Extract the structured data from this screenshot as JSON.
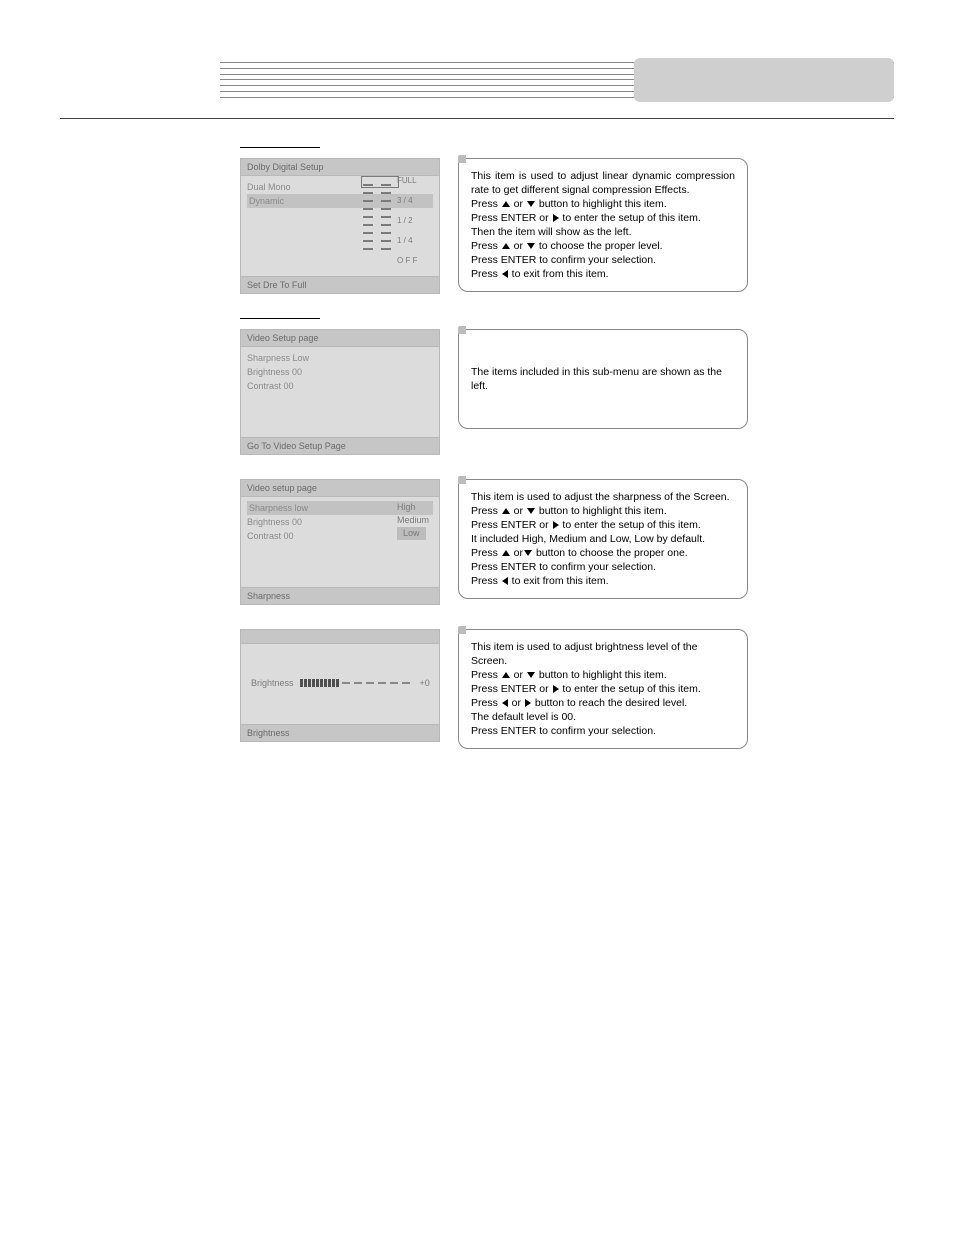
{
  "colors": {
    "page_bg": "#ffffff",
    "osd_bg": "#dcdcdc",
    "osd_header_bg": "#c6c6c6",
    "osd_text": "#8a8a8a",
    "osd_border": "#b8b8b8",
    "info_border": "#888888",
    "arrow": "#000000",
    "bar_fill": "#505050",
    "bar_dash": "#888888"
  },
  "header": {
    "type": "decorative-lines-with-pill"
  },
  "section_dolby_heading": " ",
  "dolby_osd": {
    "title": "Dolby Digital Setup",
    "items": [
      {
        "label": "Dual Mono"
      },
      {
        "label": "Dynamic",
        "selected": true
      }
    ],
    "ladder": {
      "levels": [
        "FULL",
        "3 / 4",
        "1 / 2",
        "1 / 4",
        "O F F"
      ],
      "selected": "FULL"
    },
    "footer": "Set Dre To Full"
  },
  "dolby_info": {
    "intro": "This item is used to adjust linear dynamic compression rate to get different signal compression Effects.",
    "l1a": "Press ",
    "l1b": " or ",
    "l1c": " button to highlight this item.",
    "l2a": "Press ENTER or ",
    "l2b": " to enter the setup of this item.",
    "l3": "Then the item will show as the left.",
    "l4a": "Press ",
    "l4b": " or ",
    "l4c": " to choose the proper level.",
    "l5": "Press ENTER to confirm your selection.",
    "l6a": "Press ",
    "l6b": " to exit from this item."
  },
  "section_video_heading": " ",
  "video_osd_main": {
    "title": "Video Setup page",
    "lines": [
      "Sharpness   Low",
      "Brightness  00",
      "Contrast    00"
    ],
    "footer": "Go To Video Setup Page"
  },
  "video_info_main": {
    "text": "The items included in this sub-menu are shown as the left."
  },
  "video_osd_sharp": {
    "title": "Video setup page",
    "lines": [
      {
        "text": "Sharpness   low",
        "selected": true
      },
      {
        "text": "Brightness  00"
      },
      {
        "text": "Contrast    00"
      }
    ],
    "options": [
      {
        "text": "High"
      },
      {
        "text": "Medium"
      },
      {
        "text": "Low",
        "selected": true
      }
    ],
    "footer": "Sharpness"
  },
  "sharp_info": {
    "intro": "This item is used to adjust the sharpness of the Screen.",
    "l1a": "Press ",
    "l1b": " or ",
    "l1c": " button to highlight this item.",
    "l2a": "Press ENTER or ",
    "l2b": " to enter the setup of this item.",
    "l3": "It included High, Medium and Low, Low by default.",
    "l4a": "Press ",
    "l4b": " or",
    "l4c": " button to choose the proper one.",
    "l5": "Press ENTER to confirm your selection.",
    "l6a": "Press ",
    "l6b": " to exit from this item."
  },
  "bright_osd": {
    "label": "Brightness",
    "filled_segments": 10,
    "empty_segments": 6,
    "value_text": "+0",
    "footer": "Brightness"
  },
  "bright_info": {
    "intro": "This item is used to adjust brightness level of the Screen.",
    "l1a": "Press ",
    "l1b": " or ",
    "l1c": " button to highlight this item.",
    "l2a": "Press ENTER or ",
    "l2b": " to enter the setup of this item.",
    "l3a": "Press ",
    "l3b": " or ",
    "l3c": " button to reach the desired level.",
    "l4": "The default level is 00.",
    "l5": "Press ENTER to confirm your selection."
  }
}
